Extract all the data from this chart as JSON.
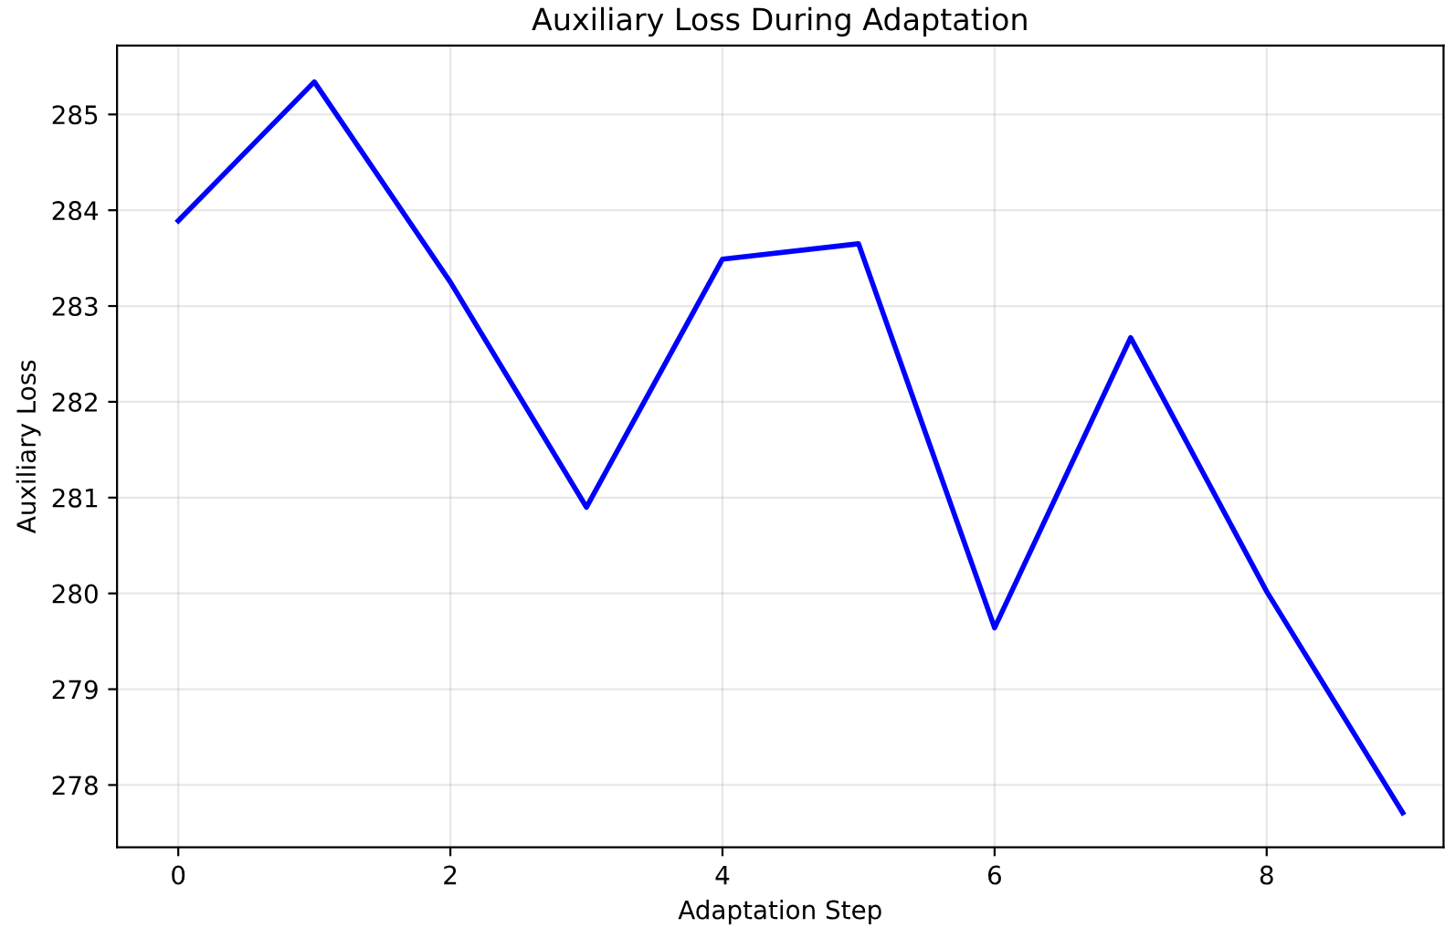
{
  "chart_data": {
    "type": "line",
    "title": "Auxiliary Loss During Adaptation",
    "xlabel": "Adaptation Step",
    "ylabel": "Auxiliary Loss",
    "x": [
      0,
      1,
      2,
      3,
      4,
      5,
      6,
      7,
      8,
      9
    ],
    "series": [
      {
        "color": "#0000ff",
        "values": [
          283.89,
          285.34,
          283.25,
          280.9,
          283.49,
          283.65,
          279.64,
          282.67,
          280.02,
          277.71
        ]
      }
    ],
    "xlim": [
      -0.45,
      9.3
    ],
    "xticks": [
      0,
      2,
      4,
      6,
      8
    ],
    "ylim": [
      277.35,
      285.72
    ],
    "yticks": [
      278,
      279,
      280,
      281,
      282,
      283,
      284,
      285
    ],
    "grid": true,
    "marker": "none",
    "line_style": "solid"
  }
}
